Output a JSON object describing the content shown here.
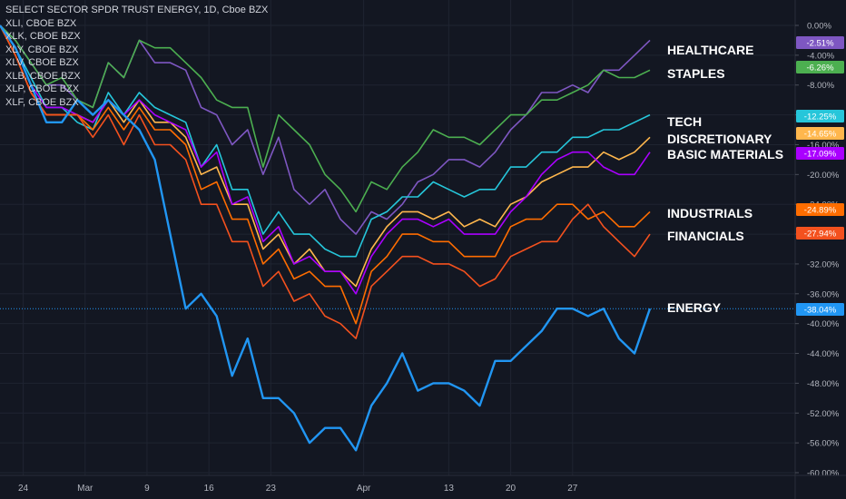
{
  "legend": {
    "title": "SELECT SECTOR SPDR TRUST ENERGY, 1D, Cboe BZX",
    "rows": [
      "XLI, CBOE BZX",
      "XLK, CBOE BZX",
      "XLY, CBOE BZX",
      "XLV, CBOE BZX",
      "XLB, CBOE BZX",
      "XLP, CBOE BZX",
      "XLF, CBOE BZX"
    ]
  },
  "chart_data": {
    "type": "line",
    "title": "SELECT SECTOR SPDR TRUST ENERGY, 1D, Cboe BZX",
    "ylim": [
      -60,
      0
    ],
    "y_ticks": [
      "0.00%",
      "-4.00%",
      "-8.00%",
      "-12.00%",
      "-16.00%",
      "-20.00%",
      "-24.00%",
      "-28.00%",
      "-32.00%",
      "-36.00%",
      "-40.00%",
      "-44.00%",
      "-48.00%",
      "-52.00%",
      "-56.00%",
      "-60.00%"
    ],
    "x_ticks": [
      "24",
      "Mar",
      "9",
      "16",
      "23",
      "Apr",
      "13",
      "20",
      "27"
    ],
    "grid": true,
    "series": [
      {
        "name": "HEALTHCARE",
        "last": "-2.51%",
        "color": "#7e57c2",
        "values": [
          0,
          -2,
          -5,
          -8,
          -8,
          -10,
          -11,
          -5,
          -7,
          -2,
          -5,
          -5,
          -6,
          -11,
          -12,
          -16,
          -14,
          -20,
          -15,
          -22,
          -24,
          -22,
          -26,
          -28,
          -25,
          -26,
          -24,
          -21,
          -20,
          -18,
          -18,
          -19,
          -17,
          -14,
          -12,
          -9,
          -9,
          -8,
          -9,
          -6,
          -6,
          -4,
          -2
        ]
      },
      {
        "name": "STAPLES",
        "last": "-6.26%",
        "color": "#4caf50",
        "values": [
          0,
          -2,
          -5,
          -8,
          -7,
          -10,
          -11,
          -5,
          -7,
          -2,
          -3,
          -3,
          -5,
          -7,
          -10,
          -11,
          -11,
          -19,
          -12,
          -14,
          -16,
          -20,
          -22,
          -25,
          -21,
          -22,
          -19,
          -17,
          -14,
          -15,
          -15,
          -16,
          -14,
          -12,
          -12,
          -10,
          -10,
          -9,
          -8,
          -6,
          -7,
          -7,
          -6
        ]
      },
      {
        "name": "TECH",
        "last": "-12.25%",
        "color": "#26c6da",
        "values": [
          0,
          -3,
          -7,
          -11,
          -11,
          -13,
          -14,
          -9,
          -12,
          -9,
          -11,
          -12,
          -13,
          -19,
          -16,
          -22,
          -22,
          -28,
          -25,
          -28,
          -28,
          -30,
          -31,
          -31,
          -26,
          -25,
          -23,
          -23,
          -21,
          -22,
          -23,
          -22,
          -22,
          -19,
          -19,
          -17,
          -17,
          -15,
          -15,
          -14,
          -14,
          -13,
          -12
        ]
      },
      {
        "name": "DISCRETIONARY",
        "last": "-14.65%",
        "color": "#ffb74d",
        "values": [
          0,
          -4,
          -9,
          -12,
          -12,
          -12,
          -13,
          -10,
          -13,
          -10,
          -13,
          -13,
          -15,
          -20,
          -19,
          -24,
          -24,
          -30,
          -28,
          -32,
          -30,
          -33,
          -33,
          -35,
          -30,
          -27,
          -25,
          -25,
          -26,
          -25,
          -27,
          -26,
          -27,
          -24,
          -23,
          -21,
          -20,
          -19,
          -19,
          -17,
          -18,
          -17,
          -15
        ]
      },
      {
        "name": "BASIC MATERIALS",
        "last": "-17.09%",
        "color": "#aa00ff",
        "values": [
          0,
          -3,
          -8,
          -11,
          -11,
          -12,
          -13,
          -10,
          -12,
          -10,
          -12,
          -13,
          -14,
          -19,
          -17,
          -24,
          -23,
          -29,
          -27,
          -32,
          -31,
          -33,
          -33,
          -36,
          -31,
          -28,
          -26,
          -26,
          -27,
          -26,
          -28,
          -28,
          -28,
          -25,
          -23,
          -20,
          -18,
          -17,
          -17,
          -19,
          -20,
          -20,
          -17
        ]
      },
      {
        "name": "INDUSTRIALS",
        "last": "-24.89%",
        "color": "#ff6d00",
        "values": [
          0,
          -4,
          -9,
          -12,
          -12,
          -12,
          -14,
          -11,
          -14,
          -11,
          -14,
          -14,
          -16,
          -22,
          -21,
          -26,
          -26,
          -32,
          -30,
          -34,
          -33,
          -35,
          -35,
          -40,
          -33,
          -31,
          -28,
          -28,
          -29,
          -29,
          -31,
          -31,
          -31,
          -27,
          -26,
          -26,
          -24,
          -24,
          -26,
          -25,
          -27,
          -27,
          -25
        ]
      },
      {
        "name": "FINANCIALS",
        "last": "-27.94%",
        "color": "#f4511e",
        "values": [
          0,
          -4,
          -9,
          -12,
          -12,
          -12,
          -15,
          -12,
          -16,
          -12,
          -16,
          -16,
          -18,
          -24,
          -24,
          -29,
          -29,
          -35,
          -33,
          -37,
          -36,
          -39,
          -40,
          -42,
          -35,
          -33,
          -31,
          -31,
          -32,
          -32,
          -33,
          -35,
          -34,
          -31,
          -30,
          -29,
          -29,
          -26,
          -24,
          -27,
          -29,
          -31,
          -28
        ]
      },
      {
        "name": "ENERGY",
        "last": "-38.04%",
        "color": "#2196f3",
        "values": [
          0,
          -3,
          -8,
          -13,
          -13,
          -10,
          -12,
          -10,
          -12,
          -14,
          -18,
          -28,
          -38,
          -36,
          -39,
          -47,
          -42,
          -50,
          -50,
          -52,
          -56,
          -54,
          -54,
          -57,
          -51,
          -48,
          -44,
          -49,
          -48,
          -48,
          -49,
          -51,
          -45,
          -45,
          -43,
          -41,
          -38,
          -38,
          -39,
          -38,
          -42,
          -44,
          -38
        ]
      }
    ]
  }
}
